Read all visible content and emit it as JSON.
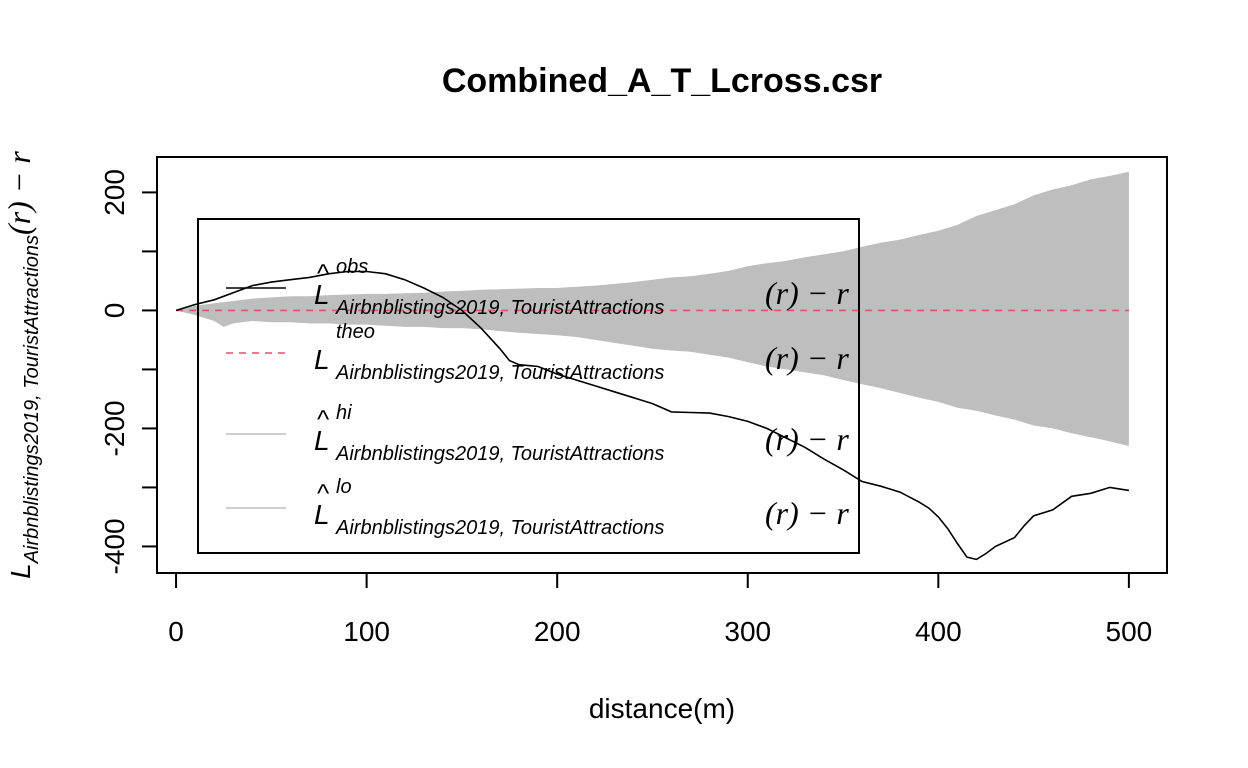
{
  "chart_data": {
    "type": "line",
    "title": "Combined_A_T_Lcross.csr",
    "xlabel": "distance(m)",
    "ylabel": {
      "main": "L",
      "sub": "Airbnblistings2019, TouristAttractions",
      "tail": "(r) − r"
    },
    "xlim": [
      -10,
      520
    ],
    "ylim": [
      -445,
      260
    ],
    "x_ticks": [
      0,
      100,
      200,
      300,
      400,
      500
    ],
    "y_ticks": [
      -400,
      -200,
      0,
      200
    ],
    "y_minor_ticks": [
      -300,
      -100,
      100
    ],
    "grid": false,
    "legend_position": "top-left",
    "legend": [
      {
        "hat": "^",
        "sup": "obs",
        "main": "L",
        "sub": "Airbnblistings2019, TouristAttractions",
        "tail": "(r) − r",
        "style": "solid",
        "color": "#000000"
      },
      {
        "hat": "",
        "sup": "theo",
        "main": "L",
        "sub": "Airbnblistings2019, TouristAttractions",
        "tail": "(r) − r",
        "style": "dashed",
        "color": "#DF536B"
      },
      {
        "hat": "^",
        "sup": "hi",
        "main": "L",
        "sub": "Airbnblistings2019, TouristAttractions",
        "tail": "(r) − r",
        "style": "solid",
        "color": "#BEBEBE"
      },
      {
        "hat": "^",
        "sup": "lo",
        "main": "L",
        "sub": "Airbnblistings2019, TouristAttractions",
        "tail": "(r) − r",
        "style": "solid",
        "color": "#BEBEBE"
      }
    ],
    "series": [
      {
        "name": "obs",
        "color": "#000000",
        "x": [
          0,
          10,
          20,
          30,
          40,
          50,
          60,
          70,
          80,
          90,
          100,
          110,
          120,
          130,
          140,
          150,
          160,
          170,
          175,
          180,
          190,
          200,
          210,
          220,
          230,
          240,
          250,
          260,
          270,
          280,
          290,
          300,
          310,
          320,
          330,
          340,
          350,
          360,
          370,
          380,
          390,
          395,
          400,
          405,
          410,
          415,
          420,
          425,
          430,
          440,
          445,
          450,
          460,
          470,
          480,
          490,
          500
        ],
        "y": [
          0,
          10,
          18,
          30,
          42,
          48,
          52,
          56,
          62,
          66,
          66,
          62,
          52,
          38,
          22,
          0,
          -30,
          -65,
          -85,
          -92,
          -95,
          -108,
          -118,
          -128,
          -138,
          -148,
          -158,
          -172,
          -173,
          -174,
          -180,
          -188,
          -200,
          -216,
          -232,
          -252,
          -270,
          -290,
          -298,
          -308,
          -325,
          -335,
          -350,
          -370,
          -395,
          -418,
          -422,
          -412,
          -400,
          -385,
          -365,
          -348,
          -338,
          -315,
          -310,
          -300,
          -305
        ]
      },
      {
        "name": "theo",
        "color": "#DF536B",
        "x": [
          0,
          500
        ],
        "y": [
          0,
          0
        ]
      },
      {
        "name": "hi",
        "color": "#BEBEBE",
        "x": [
          0,
          10,
          20,
          30,
          40,
          50,
          60,
          70,
          80,
          90,
          100,
          110,
          120,
          130,
          140,
          150,
          160,
          170,
          180,
          190,
          200,
          210,
          220,
          230,
          240,
          250,
          260,
          270,
          280,
          290,
          300,
          310,
          320,
          330,
          340,
          350,
          360,
          370,
          380,
          390,
          400,
          410,
          420,
          430,
          440,
          450,
          460,
          470,
          480,
          490,
          500
        ],
        "y": [
          0,
          8,
          12,
          16,
          20,
          22,
          24,
          24,
          26,
          27,
          28,
          28,
          29,
          30,
          32,
          33,
          35,
          36,
          37,
          38,
          38,
          40,
          42,
          45,
          48,
          52,
          56,
          58,
          62,
          67,
          75,
          80,
          84,
          90,
          95,
          100,
          108,
          115,
          120,
          128,
          135,
          145,
          160,
          170,
          180,
          195,
          205,
          212,
          222,
          228,
          235
        ]
      },
      {
        "name": "lo",
        "color": "#BEBEBE",
        "x": [
          0,
          10,
          20,
          25,
          30,
          40,
          50,
          60,
          70,
          80,
          90,
          100,
          110,
          120,
          130,
          140,
          150,
          160,
          170,
          180,
          190,
          200,
          210,
          220,
          230,
          240,
          250,
          260,
          270,
          280,
          290,
          300,
          310,
          320,
          330,
          340,
          350,
          360,
          370,
          380,
          390,
          400,
          410,
          420,
          430,
          440,
          450,
          460,
          470,
          480,
          490,
          500
        ],
        "y": [
          0,
          -8,
          -18,
          -28,
          -22,
          -18,
          -20,
          -20,
          -22,
          -22,
          -24,
          -24,
          -26,
          -28,
          -28,
          -30,
          -30,
          -32,
          -35,
          -38,
          -40,
          -42,
          -45,
          -50,
          -55,
          -60,
          -65,
          -68,
          -70,
          -75,
          -80,
          -88,
          -95,
          -100,
          -105,
          -110,
          -118,
          -125,
          -132,
          -140,
          -148,
          -155,
          -165,
          -170,
          -178,
          -185,
          -195,
          -200,
          -208,
          -215,
          -222,
          -230
        ]
      }
    ]
  }
}
